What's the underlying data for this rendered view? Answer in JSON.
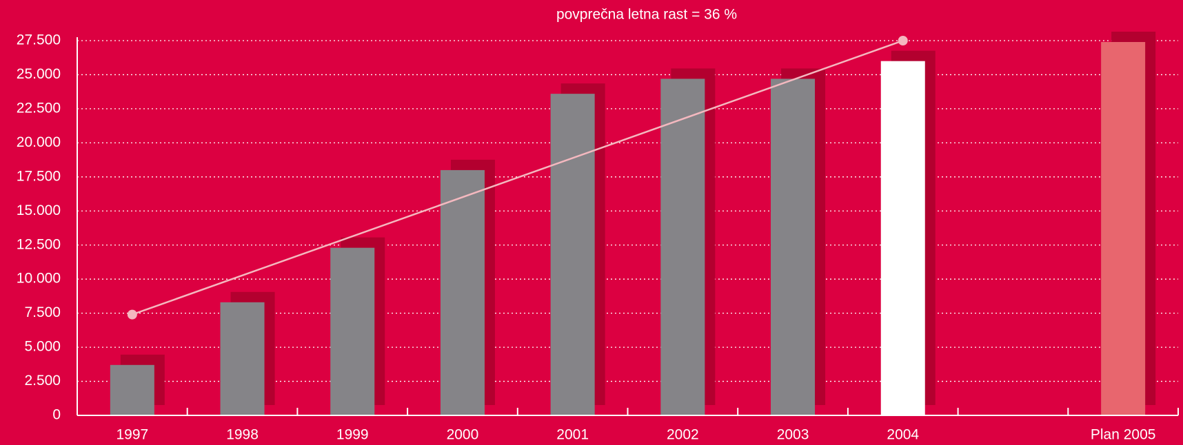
{
  "chart_data": {
    "type": "bar",
    "annotation": "povprečna letna rast = 36 %",
    "categories": [
      "1997",
      "1998",
      "1999",
      "2000",
      "2001",
      "2002",
      "2003",
      "2004",
      null,
      "Plan 2005"
    ],
    "values": [
      3700,
      8300,
      12300,
      18000,
      23600,
      24700,
      24700,
      26000,
      null,
      27400
    ],
    "colors": [
      "#858488",
      "#858488",
      "#858488",
      "#858488",
      "#858488",
      "#858488",
      "#858488",
      "#ffffff",
      null,
      "#e8666e"
    ],
    "shadow_color": "#b3002f",
    "trend": {
      "categories": [
        "1997",
        "2004"
      ],
      "values": [
        7400,
        27500
      ],
      "color": "#f4b8bf"
    },
    "ylim": [
      0,
      27500
    ],
    "yticks": [
      0,
      {
        "value": 2500,
        "label": "2.500"
      },
      {
        "value": 5000,
        "label": "5.000"
      },
      {
        "value": 7500,
        "label": "7.500"
      },
      {
        "value": 10000,
        "label": "10.000"
      },
      {
        "value": 12500,
        "label": "12.500"
      },
      {
        "value": 15000,
        "label": "15.000"
      },
      {
        "value": 17500,
        "label": "17.500"
      },
      {
        "value": 20000,
        "label": "20.000"
      },
      {
        "value": 22500,
        "label": "22.500"
      },
      {
        "value": 25000,
        "label": "25.000"
      },
      {
        "value": 27500,
        "label": "27.500"
      }
    ],
    "grid": true
  }
}
